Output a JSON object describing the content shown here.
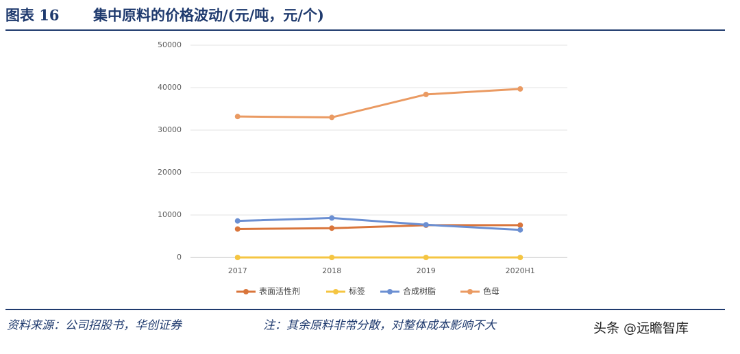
{
  "header": {
    "label": "图表 16",
    "title": "集中原料的价格波动/(元/吨，元/个)"
  },
  "chart_data": {
    "type": "line",
    "categories": [
      "2017",
      "2018",
      "2019",
      "2020H1"
    ],
    "series": [
      {
        "name": "表面活性剂",
        "color": "#d9753b",
        "values": [
          6700,
          6900,
          7600,
          7600
        ]
      },
      {
        "name": "标签",
        "color": "#f5c542",
        "values": [
          0,
          0,
          0,
          0
        ]
      },
      {
        "name": "合成树脂",
        "color": "#6b8fd2",
        "values": [
          8600,
          9300,
          7700,
          6500
        ]
      },
      {
        "name": "色母",
        "color": "#ea9a62",
        "values": [
          33200,
          33000,
          38400,
          39700
        ]
      }
    ],
    "ylim": [
      0,
      50000
    ],
    "yticks": [
      0,
      10000,
      20000,
      30000,
      40000,
      50000
    ],
    "grid": true,
    "legend": "bottom"
  },
  "footer": {
    "source": "资料来源：公司招股书，华创证券",
    "note": "注：其余原料非常分散，对整体成本影响不大",
    "watermark": "头条 @远瞻智库"
  }
}
